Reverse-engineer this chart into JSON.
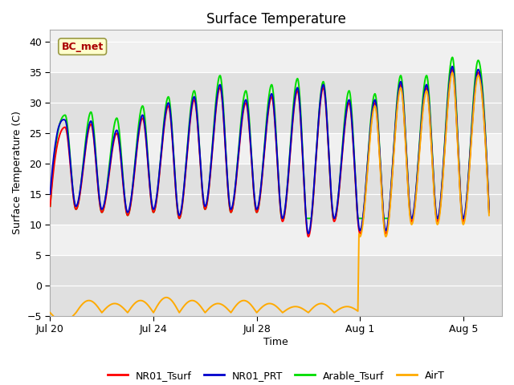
{
  "title": "Surface Temperature",
  "xlabel": "Time",
  "ylabel": "Surface Temperature (C)",
  "annotation": "BC_met",
  "ylim": [
    -5,
    42
  ],
  "yticks": [
    -5,
    0,
    5,
    10,
    15,
    20,
    25,
    30,
    35,
    40
  ],
  "xtick_positions": [
    0,
    4,
    8,
    12,
    16
  ],
  "xtick_labels": [
    "Jul 20",
    "Jul 24",
    "Jul 28",
    "Aug 1",
    "Aug 5"
  ],
  "xlim": [
    0,
    17.5
  ],
  "colors": {
    "NR01_Tsurf": "#ff0000",
    "NR01_PRT": "#0000cc",
    "Arable_Tsurf": "#00dd00",
    "AirT": "#ffaa00"
  },
  "plot_bg": "#f0f0f0",
  "band_color": "#e0e0e0",
  "legend_labels": [
    "NR01_Tsurf",
    "NR01_PRT",
    "Arable_Tsurf",
    "AirT"
  ],
  "linewidth": 1.4,
  "airt_transition_day": 11.92,
  "annotation_color": "#aa0000",
  "annotation_bg": "#ffffcc",
  "annotation_edge": "#999944",
  "nr01_peaks": [
    26.0,
    26.5,
    25.0,
    27.5,
    29.5,
    30.5,
    32.5,
    30.0,
    31.0,
    32.0,
    32.5,
    30.0,
    30.0,
    33.0,
    32.5,
    35.5,
    35.0
  ],
  "nr01_valleys": [
    13.0,
    12.5,
    12.0,
    11.5,
    12.0,
    11.0,
    12.5,
    12.0,
    12.0,
    10.5,
    8.0,
    10.5,
    8.5,
    8.5,
    10.5,
    10.5,
    10.5
  ],
  "arable_extra": [
    2.0,
    2.0,
    2.5,
    2.0,
    1.5,
    1.5,
    2.0,
    2.0,
    2.0,
    2.0,
    1.0,
    2.0,
    1.5,
    1.5,
    2.0,
    2.0,
    2.0
  ]
}
